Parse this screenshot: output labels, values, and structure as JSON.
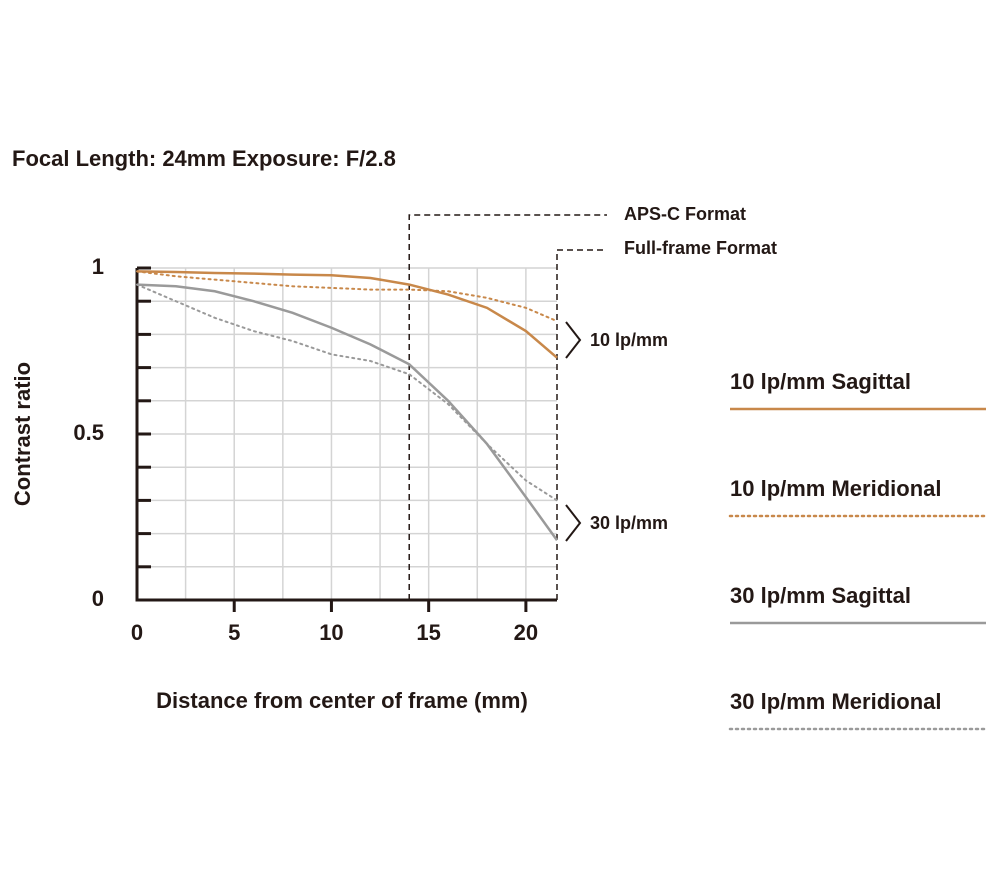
{
  "chart_data": {
    "type": "line",
    "title": "Focal Length: 24mm   Exposure: F/2.8",
    "xlabel": "Distance from center of frame (mm)",
    "ylabel": "Contrast ratio",
    "x": [
      0,
      2,
      4,
      6,
      8,
      10,
      12,
      14,
      16,
      18,
      20,
      21.6
    ],
    "series": [
      {
        "name": "10 lp/mm Sagittal",
        "color": "#c8884a",
        "dashed": false,
        "values": [
          0.99,
          0.988,
          0.985,
          0.983,
          0.98,
          0.978,
          0.97,
          0.95,
          0.92,
          0.88,
          0.81,
          0.73
        ]
      },
      {
        "name": "10 lp/mm Meridional",
        "color": "#c8884a",
        "dashed": true,
        "values": [
          0.99,
          0.975,
          0.965,
          0.955,
          0.945,
          0.94,
          0.935,
          0.935,
          0.93,
          0.91,
          0.88,
          0.84
        ]
      },
      {
        "name": "30 lp/mm Sagittal",
        "color": "#9a9a9a",
        "dashed": false,
        "values": [
          0.95,
          0.945,
          0.93,
          0.9,
          0.865,
          0.82,
          0.77,
          0.71,
          0.6,
          0.47,
          0.31,
          0.18
        ]
      },
      {
        "name": "30 lp/mm Meridional",
        "color": "#9a9a9a",
        "dashed": true,
        "values": [
          0.95,
          0.9,
          0.85,
          0.81,
          0.78,
          0.74,
          0.72,
          0.68,
          0.59,
          0.47,
          0.36,
          0.3
        ]
      }
    ],
    "xlim": [
      0,
      21.6
    ],
    "ylim": [
      0,
      1
    ],
    "xticks": [
      0,
      5,
      10,
      15,
      20
    ],
    "yticks": [
      0,
      0.5,
      1
    ],
    "xgrid": [
      2.5,
      5,
      7.5,
      10,
      12.5,
      15,
      17.5,
      20
    ],
    "ygrid": [
      0.1,
      0.2,
      0.3,
      0.4,
      0.5,
      0.6,
      0.7,
      0.8,
      0.9,
      1
    ],
    "grid": true,
    "apsc_label": "APS-C Format",
    "apsc_x": 14,
    "fullframe_label": "Full-frame Format",
    "fullframe_x": 21.6,
    "group_labels": [
      "10 lp/mm",
      "30 lp/mm"
    ]
  }
}
